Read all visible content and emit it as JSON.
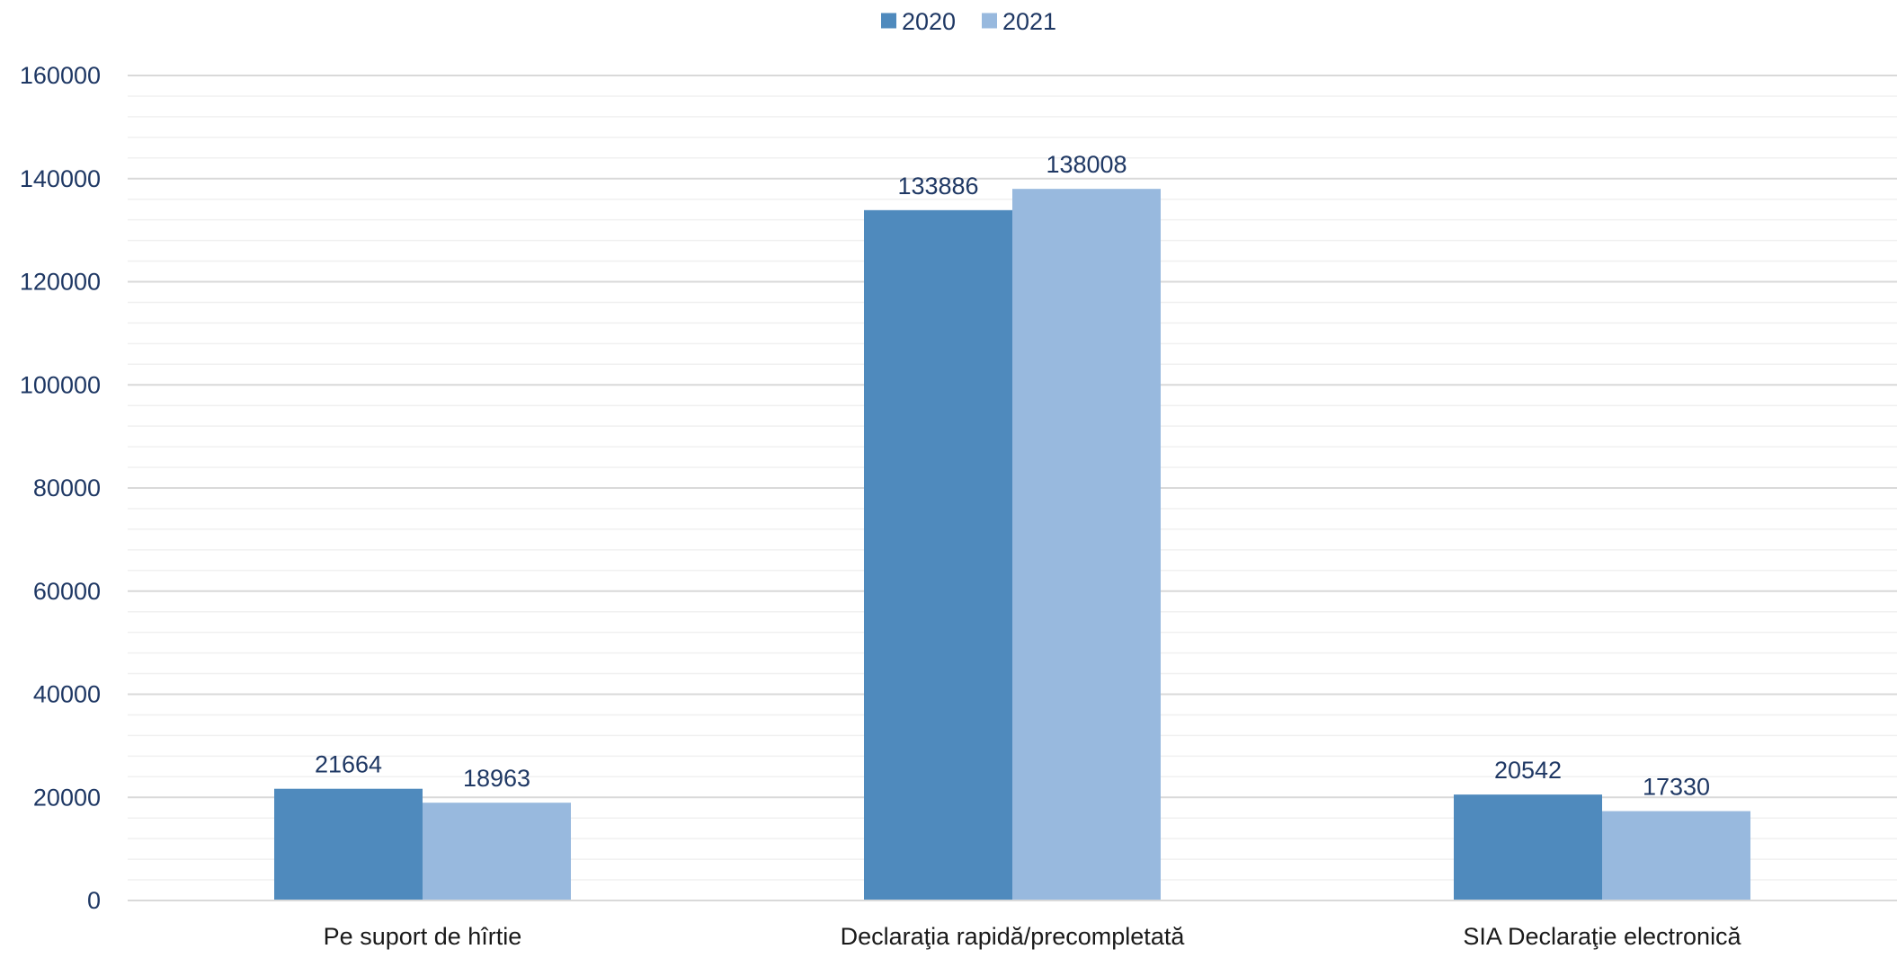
{
  "chart_data": {
    "type": "bar",
    "categories": [
      "Pe suport de hîrtie",
      "Declaraţia rapidă/precompletată",
      "SIA Declaraţie electronică"
    ],
    "series": [
      {
        "name": "2020",
        "values": [
          21664,
          133886,
          20542
        ]
      },
      {
        "name": "2021",
        "values": [
          18963,
          138008,
          17330
        ]
      }
    ],
    "ylim": [
      0,
      160000
    ],
    "yticks": [
      0,
      20000,
      40000,
      60000,
      80000,
      100000,
      120000,
      140000,
      160000
    ],
    "minor_grid_step": 4000,
    "grid": true,
    "legend_position": "top-center",
    "data_labels": true,
    "colors": {
      "series": [
        "#4f8abd",
        "#98b9de"
      ],
      "text": "#1f3864",
      "major_grid": "#d9d9d9",
      "minor_grid": "#f0f0f0",
      "axis": "#d9d9d9"
    }
  }
}
